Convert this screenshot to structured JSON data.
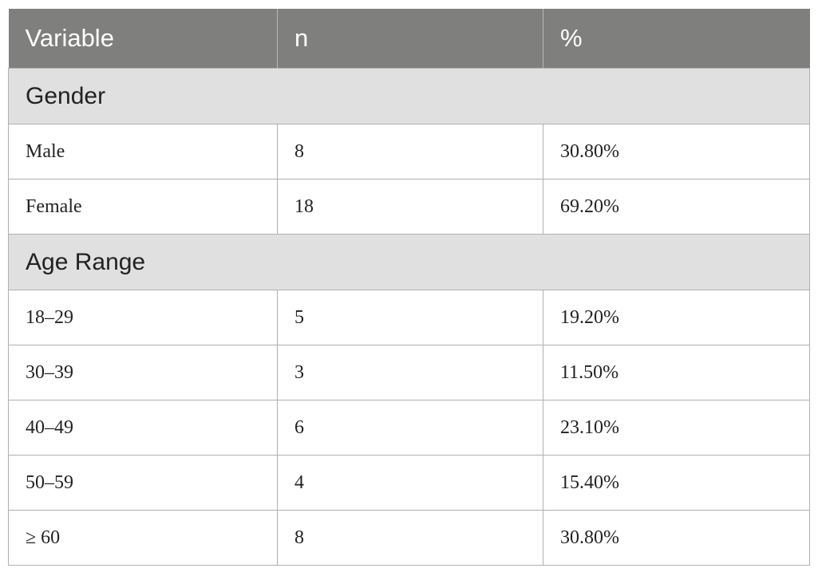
{
  "table": {
    "headers": [
      "Variable",
      "n",
      "%"
    ],
    "sections": [
      {
        "title": "Gender",
        "rows": [
          {
            "variable": "Male",
            "n": "8",
            "pct": "30.80%"
          },
          {
            "variable": "Female",
            "n": "18",
            "pct": "69.20%"
          }
        ]
      },
      {
        "title": "Age Range",
        "rows": [
          {
            "variable": "18–29",
            "n": "5",
            "pct": "19.20%"
          },
          {
            "variable": "30–39",
            "n": "3",
            "pct": "11.50%"
          },
          {
            "variable": "40–49",
            "n": "6",
            "pct": "23.10%"
          },
          {
            "variable": "50–59",
            "n": "4",
            "pct": "15.40%"
          },
          {
            "variable": "≥ 60",
            "n": "8",
            "pct": "30.80%"
          }
        ]
      }
    ]
  }
}
